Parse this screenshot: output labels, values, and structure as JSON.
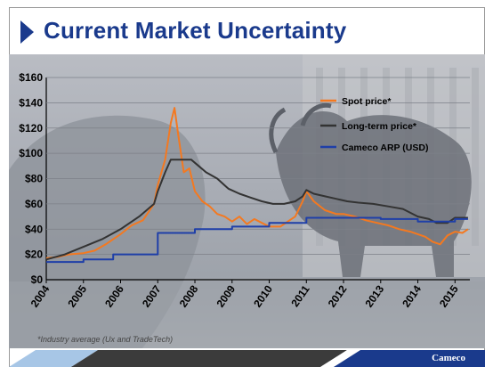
{
  "slide": {
    "title": "Current Market Uncertainty",
    "footnote": "*Industry average (Ux and TradeTech)",
    "brand": "Cameco"
  },
  "colors": {
    "title": "#1a3a8c",
    "spot": "#f47920",
    "long_term": "#333333",
    "arp": "#1f3fa8"
  },
  "chart_data": {
    "type": "line",
    "xlim": [
      2004,
      2015.4
    ],
    "ylim": [
      0,
      160
    ],
    "y_ticks": [
      "$0",
      "$20",
      "$40",
      "$60",
      "$80",
      "$100",
      "$120",
      "$140",
      "$160"
    ],
    "x_ticks": [
      "2004",
      "2005",
      "2006",
      "2007",
      "2008",
      "2009",
      "2010",
      "2011",
      "2012",
      "2013",
      "2014",
      "2015"
    ],
    "grid": true,
    "legend_position": "top-right",
    "series": [
      {
        "name": "Spot price*",
        "color": "#f47920",
        "x": [
          2004.0,
          2004.3,
          2004.6,
          2005.0,
          2005.3,
          2005.6,
          2006.0,
          2006.3,
          2006.6,
          2006.9,
          2007.0,
          2007.2,
          2007.35,
          2007.45,
          2007.55,
          2007.7,
          2007.85,
          2008.0,
          2008.2,
          2008.4,
          2008.6,
          2008.8,
          2009.0,
          2009.2,
          2009.4,
          2009.6,
          2009.8,
          2010.0,
          2010.3,
          2010.5,
          2010.7,
          2010.9,
          2011.0,
          2011.2,
          2011.5,
          2011.8,
          2012.0,
          2012.3,
          2012.6,
          2012.9,
          2013.2,
          2013.5,
          2013.8,
          2014.0,
          2014.2,
          2014.4,
          2014.6,
          2014.8,
          2015.0,
          2015.2,
          2015.35
        ],
        "y": [
          17,
          18,
          20,
          21,
          23,
          28,
          36,
          43,
          47,
          60,
          75,
          95,
          124,
          136,
          115,
          85,
          88,
          70,
          62,
          58,
          52,
          50,
          46,
          50,
          44,
          48,
          45,
          42,
          42,
          46,
          50,
          62,
          70,
          62,
          55,
          52,
          52,
          50,
          47,
          45,
          43,
          40,
          38,
          36,
          34,
          30,
          28,
          35,
          38,
          37,
          40
        ]
      },
      {
        "name": "Long-term price*",
        "color": "#333333",
        "x": [
          2004.0,
          2004.5,
          2005.0,
          2005.5,
          2006.0,
          2006.5,
          2006.9,
          2007.0,
          2007.2,
          2007.35,
          2007.5,
          2007.9,
          2008.1,
          2008.3,
          2008.6,
          2008.9,
          2009.2,
          2009.5,
          2009.8,
          2010.1,
          2010.4,
          2010.7,
          2010.9,
          2011.0,
          2011.2,
          2011.5,
          2011.8,
          2012.1,
          2012.4,
          2012.8,
          2013.2,
          2013.6,
          2014.0,
          2014.3,
          2014.5,
          2014.8,
          2015.0,
          2015.35
        ],
        "y": [
          16,
          20,
          26,
          32,
          40,
          50,
          60,
          70,
          85,
          95,
          95,
          95,
          90,
          85,
          80,
          72,
          68,
          65,
          62,
          60,
          60,
          62,
          66,
          71,
          68,
          66,
          64,
          62,
          61,
          60,
          58,
          56,
          50,
          48,
          45,
          45,
          49,
          49
        ]
      },
      {
        "name": "Cameco ARP (USD)",
        "color": "#1f3fa8",
        "x": [
          2004.0,
          2005.0,
          2005.0,
          2005.8,
          2005.8,
          2007.0,
          2007.0,
          2008.0,
          2008.0,
          2009.0,
          2009.0,
          2010.0,
          2010.0,
          2011.0,
          2011.0,
          2012.0,
          2012.0,
          2013.0,
          2013.0,
          2014.0,
          2014.0,
          2015.0,
          2015.0,
          2015.35
        ],
        "y": [
          14,
          14,
          16,
          16,
          20,
          20,
          37,
          37,
          40,
          40,
          42,
          42,
          45,
          45,
          49,
          49,
          49,
          49,
          48,
          48,
          46,
          46,
          48,
          48
        ]
      }
    ]
  }
}
